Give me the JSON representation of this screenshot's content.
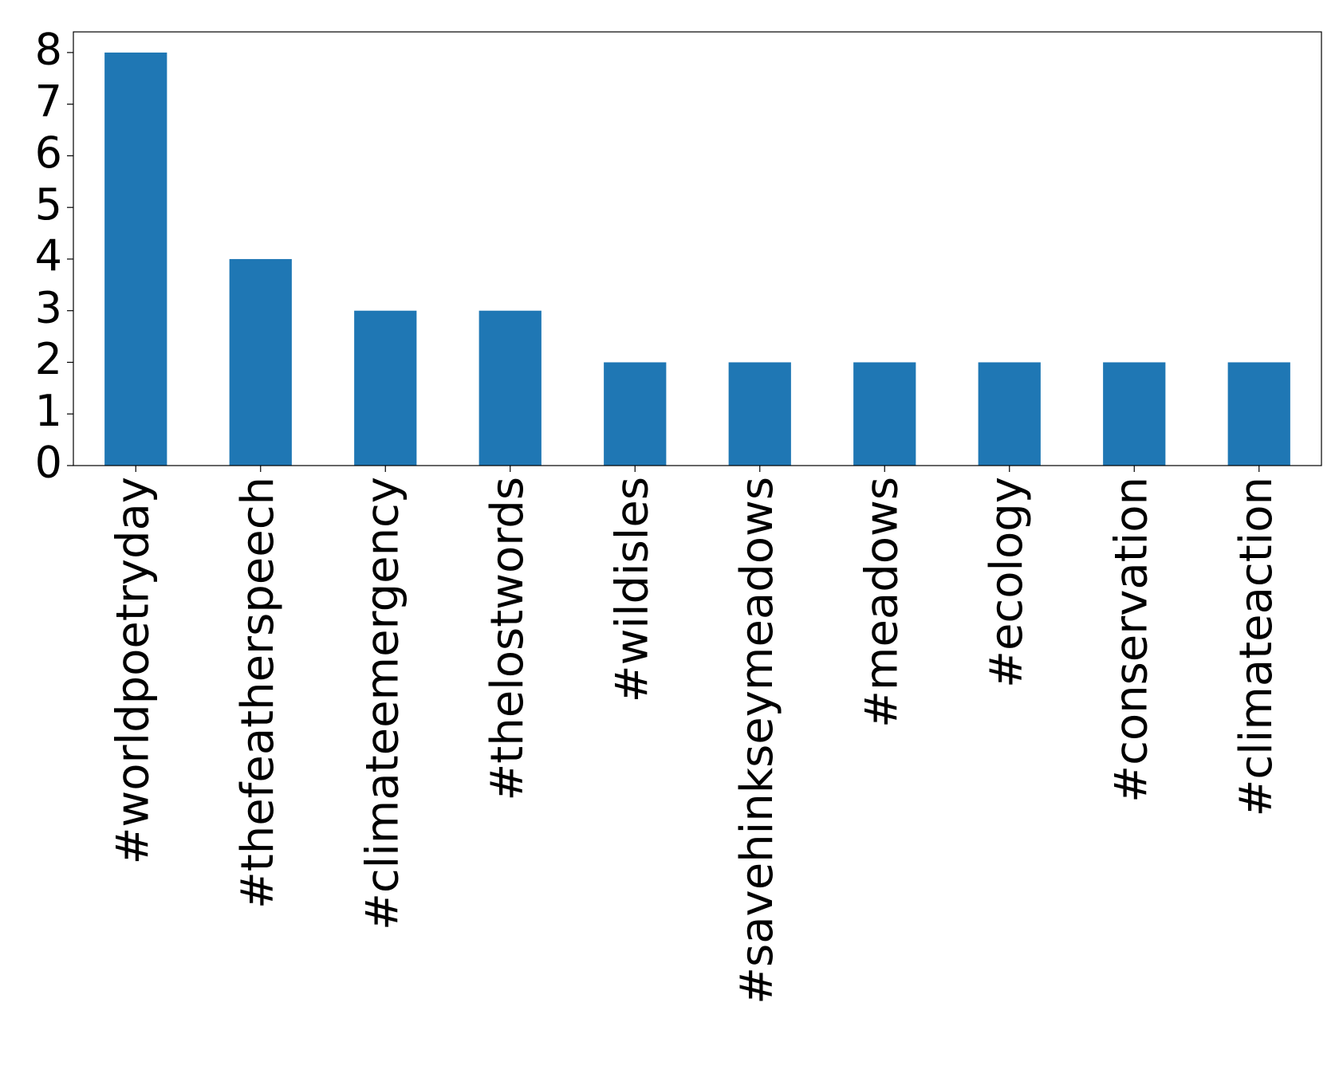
{
  "chart_data": {
    "type": "bar",
    "categories": [
      "#worldpoetryday",
      "#thefeatherspeech",
      "#climateemergency",
      "#thelostwords",
      "#wildisles",
      "#savehinkseymeadows",
      "#meadows",
      "#ecology",
      "#conservation",
      "#climateaction"
    ],
    "values": [
      8,
      4,
      3,
      3,
      2,
      2,
      2,
      2,
      2,
      2
    ],
    "color": "#1f77b4",
    "ylim": [
      0,
      8.4
    ],
    "yticks": [
      0,
      1,
      2,
      3,
      4,
      5,
      6,
      7,
      8
    ],
    "grid": false
  }
}
